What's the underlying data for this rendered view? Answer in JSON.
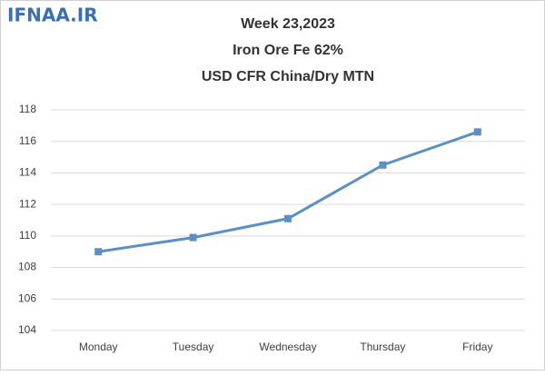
{
  "watermark": "IFNAA.IR",
  "chart_data": {
    "type": "line",
    "title_lines": [
      "Week 23,2023",
      "Iron Ore Fe 62%",
      "USD CFR China/Dry MTN"
    ],
    "categories": [
      "Monday",
      "Tuesday",
      "Wednesday",
      "Thursday",
      "Friday"
    ],
    "values": [
      109.0,
      109.9,
      111.1,
      114.5,
      116.6
    ],
    "color": "#5b8fc5",
    "ylim": [
      104,
      118
    ],
    "yticks": [
      104,
      106,
      108,
      110,
      112,
      114,
      116,
      118
    ],
    "grid": true
  }
}
